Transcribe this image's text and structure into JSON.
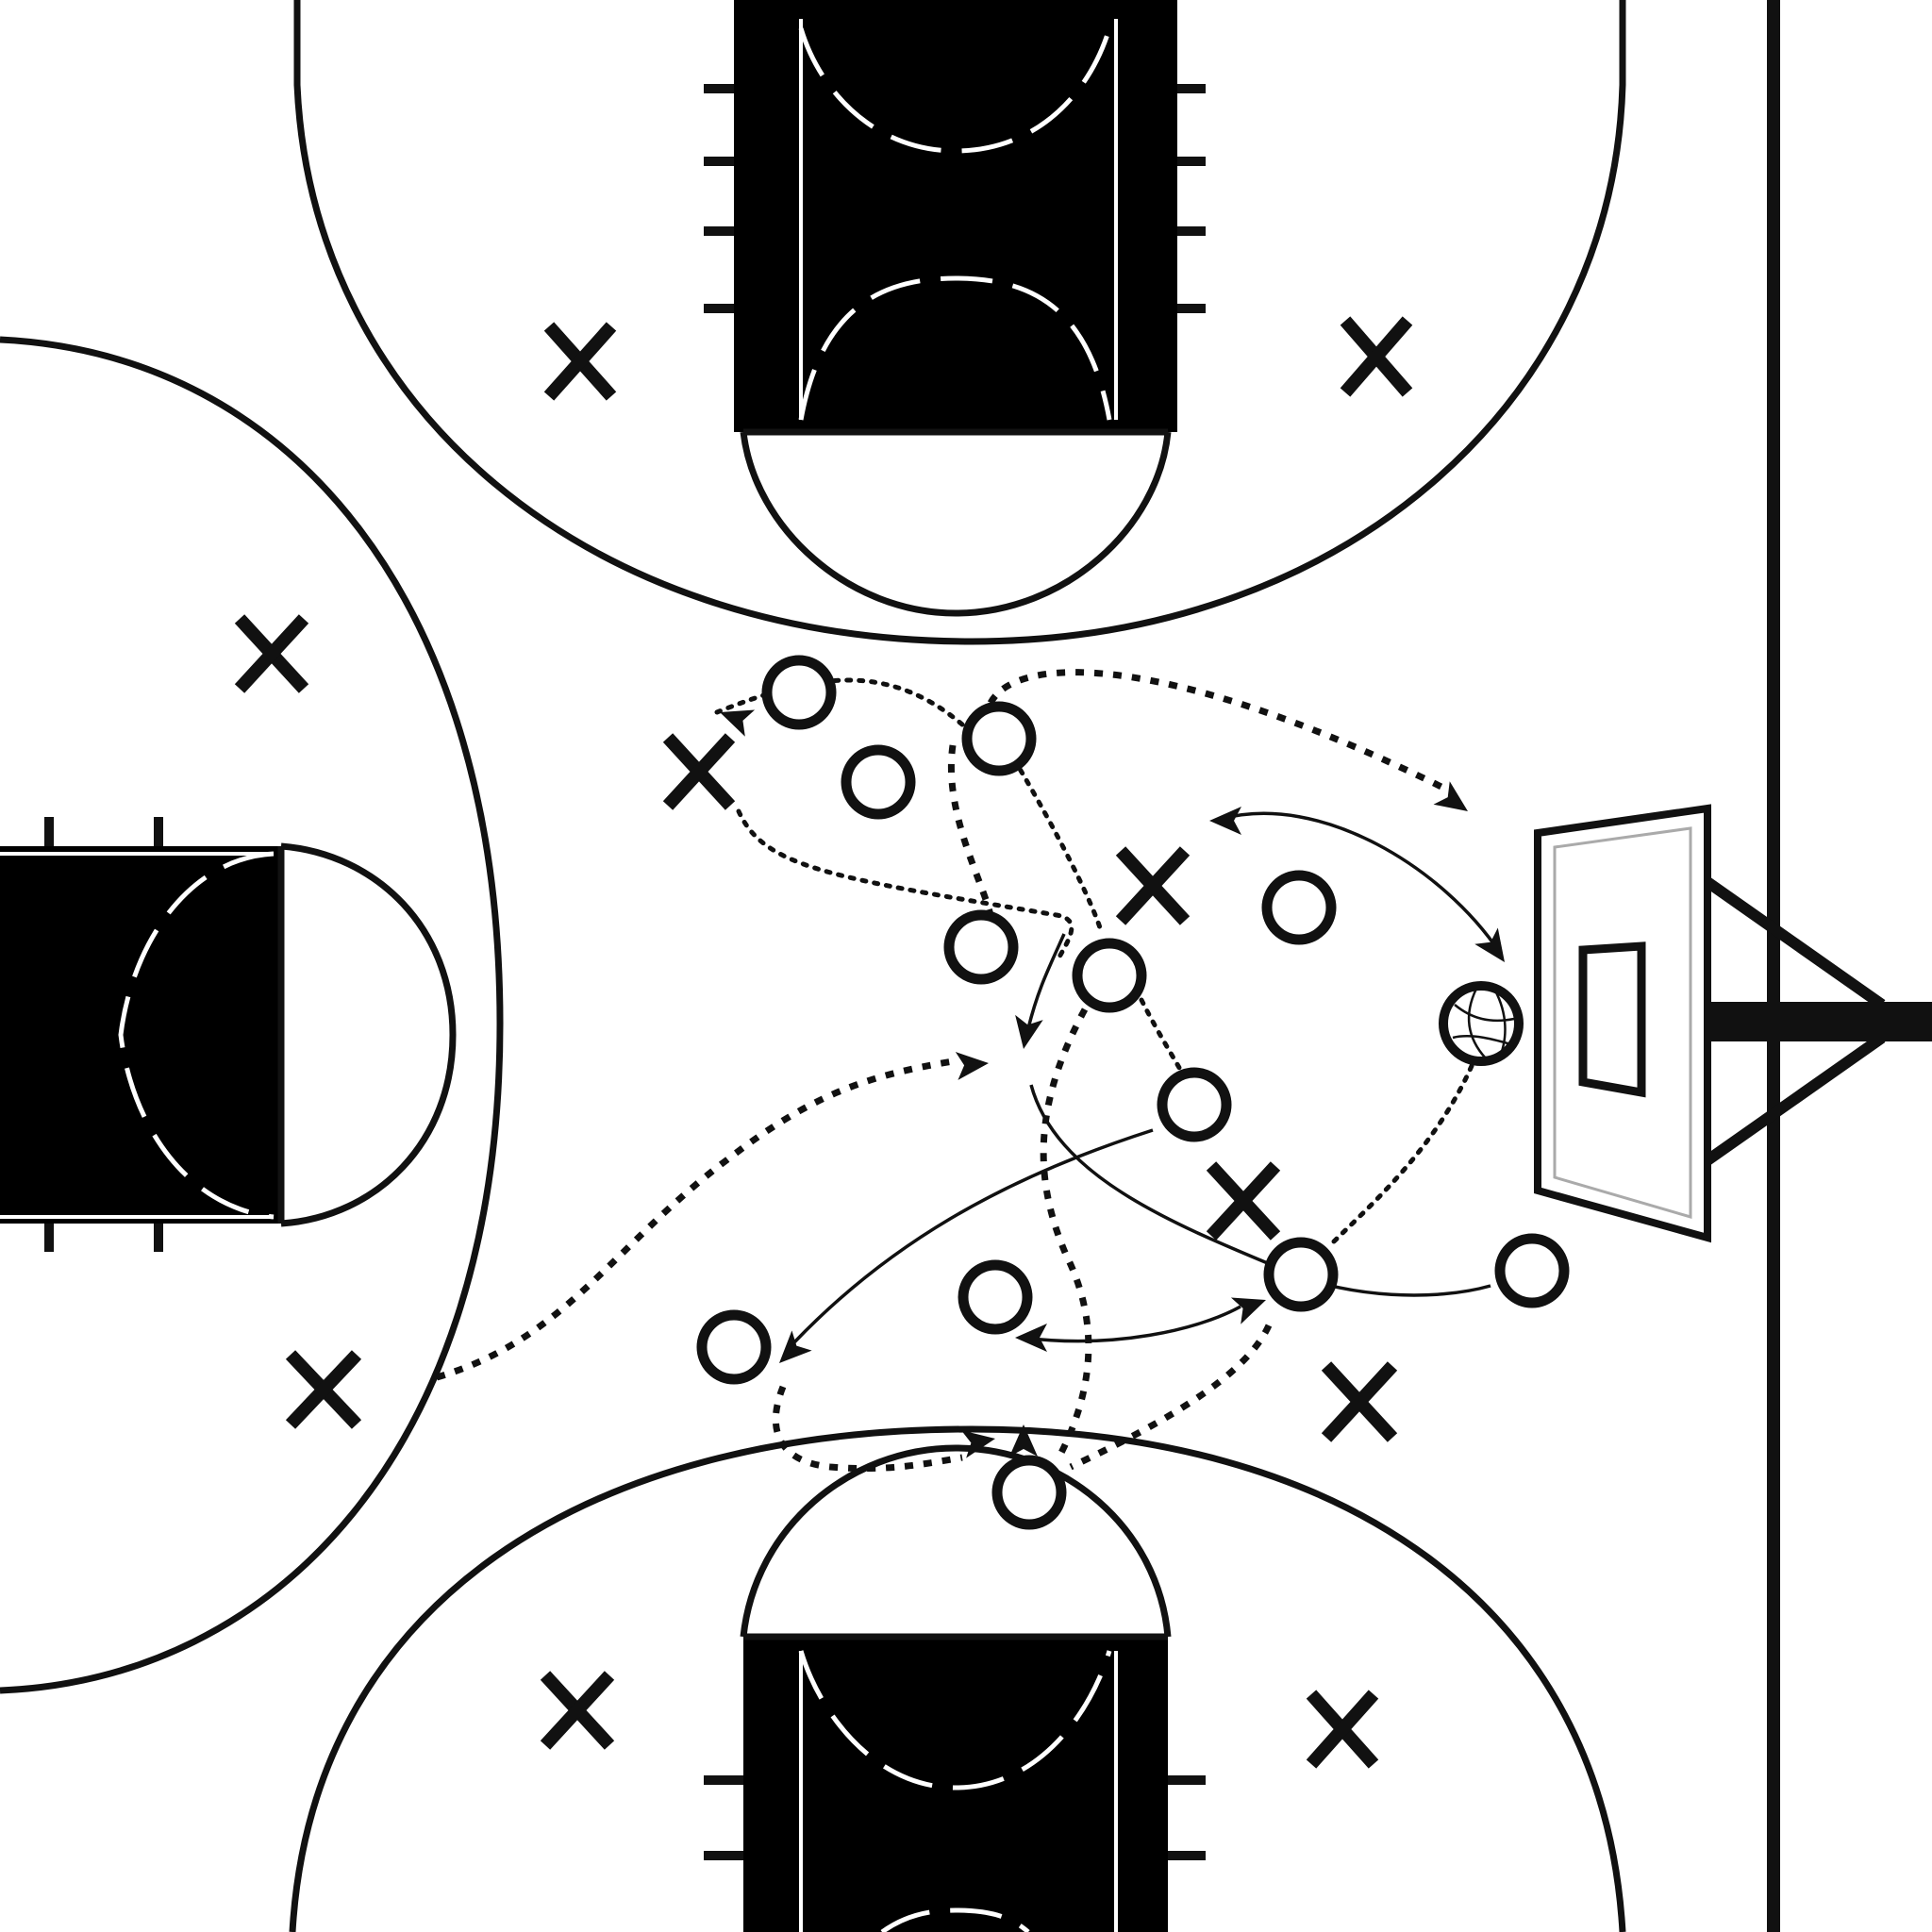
{
  "board": {
    "background": "#ffffff",
    "ink": "#111111",
    "markers": {
      "defender": "X",
      "offense": "O"
    },
    "ball_icon": "basketball-icon",
    "hoop_icon": "backboard-icon"
  }
}
